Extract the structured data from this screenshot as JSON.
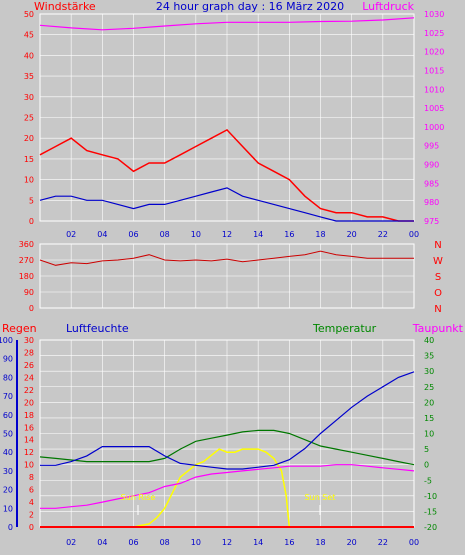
{
  "header": {
    "left_label": "Windstärke",
    "title": "24 hour graph day : 16 März 2020",
    "right_label": "Luftdruck"
  },
  "colors": {
    "background": "#c8c8c8",
    "plot_bg": "#c8c8c8",
    "grid": "#ffffff",
    "wind_gust": "#ff0000",
    "wind_avg": "#0000cc",
    "wind_green": "#008800",
    "pressure": "#ff00ff",
    "direction": "#cc0000",
    "humidity": "#0000cc",
    "temperature": "#007700",
    "dewpoint": "#ff00ff",
    "solar": "#ffff00",
    "rain": "#ff0000",
    "axis_red": "#ff0000",
    "axis_blue": "#0000cc",
    "axis_green": "#008800",
    "axis_magenta": "#ff00ff"
  },
  "chart_data": [
    {
      "type": "line",
      "title": "24 hour graph day : 16 März 2020",
      "ylabel": "Windstärke",
      "y2label": "Luftdruck",
      "x_ticks": [
        "02",
        "04",
        "06",
        "08",
        "10",
        "12",
        "14",
        "16",
        "18",
        "20",
        "22",
        "00"
      ],
      "x_range": [
        0,
        24
      ],
      "ylim": [
        0,
        50
      ],
      "y_ticks": [
        0,
        5,
        10,
        15,
        20,
        25,
        30,
        35,
        40,
        45,
        50
      ],
      "y2lim": [
        975,
        1030
      ],
      "y2_ticks": [
        975,
        980,
        985,
        990,
        995,
        1000,
        1005,
        1010,
        1015,
        1020,
        1025,
        1030
      ],
      "grid": true,
      "series": [
        {
          "name": "Windstärke Böen",
          "color": "#ff0000",
          "x": [
            0,
            1,
            2,
            3,
            4,
            5,
            6,
            7,
            8,
            9,
            10,
            11,
            12,
            13,
            14,
            15,
            16,
            17,
            18,
            19,
            20,
            21,
            22,
            23,
            24
          ],
          "values": [
            16,
            18,
            20,
            17,
            16,
            15,
            12,
            14,
            14,
            16,
            18,
            20,
            22,
            18,
            14,
            12,
            10,
            6,
            3,
            2,
            2,
            1,
            1,
            0,
            0
          ]
        },
        {
          "name": "Windstärke Mittel",
          "color": "#0000cc",
          "x": [
            0,
            1,
            2,
            3,
            4,
            5,
            6,
            7,
            8,
            9,
            10,
            11,
            12,
            13,
            14,
            15,
            16,
            17,
            18,
            19,
            20,
            21,
            22,
            23,
            24
          ],
          "values": [
            5,
            6,
            6,
            5,
            5,
            4,
            3,
            4,
            4,
            5,
            6,
            7,
            8,
            6,
            5,
            4,
            3,
            2,
            1,
            0,
            0,
            0,
            0,
            0,
            0
          ]
        },
        {
          "name": "Luftdruck",
          "color": "#ff00ff",
          "axis": "y2",
          "x": [
            0,
            2,
            4,
            6,
            8,
            10,
            12,
            14,
            16,
            18,
            20,
            22,
            24
          ],
          "values": [
            1027.0,
            1026.3,
            1025.8,
            1026.2,
            1026.8,
            1027.4,
            1027.8,
            1027.8,
            1027.8,
            1028.0,
            1028.1,
            1028.4,
            1029.0
          ]
        }
      ]
    },
    {
      "type": "line",
      "ylabel_right": [
        "N",
        "W",
        "S",
        "O",
        "N"
      ],
      "x_range": [
        0,
        24
      ],
      "ylim": [
        0,
        360
      ],
      "y_ticks": [
        0,
        90,
        180,
        270,
        360
      ],
      "grid": true,
      "series": [
        {
          "name": "Windrichtung",
          "color": "#cc0000",
          "x": [
            0,
            1,
            2,
            3,
            4,
            5,
            6,
            7,
            8,
            9,
            10,
            11,
            12,
            13,
            14,
            15,
            16,
            17,
            18,
            19,
            20,
            21,
            22,
            23,
            24
          ],
          "values": [
            270,
            240,
            255,
            250,
            265,
            270,
            280,
            300,
            270,
            265,
            270,
            265,
            275,
            260,
            270,
            280,
            290,
            300,
            320,
            300,
            290,
            280,
            280,
            280,
            280
          ]
        }
      ]
    },
    {
      "type": "line",
      "left_labels": [
        "Regen",
        "Luftfeuchte"
      ],
      "right_labels": [
        "Temperatur",
        "Taupunkt"
      ],
      "annotations": [
        "Sun Rise",
        "Sun Set"
      ],
      "x_ticks": [
        "02",
        "04",
        "06",
        "08",
        "10",
        "12",
        "14",
        "16",
        "18",
        "20",
        "22",
        "00"
      ],
      "x_range": [
        0,
        24
      ],
      "y_humidity_lim": [
        0,
        100
      ],
      "y_humidity_ticks": [
        0,
        10,
        20,
        30,
        40,
        50,
        60,
        70,
        80,
        90,
        100
      ],
      "y_rain_lim": [
        0,
        30
      ],
      "y_rain_ticks": [
        0,
        2,
        4,
        6,
        8,
        10,
        12,
        14,
        16,
        18,
        20,
        22,
        24,
        26,
        28,
        30
      ],
      "y_temp_lim": [
        -20,
        40
      ],
      "y_temp_ticks": [
        -20,
        -15,
        -10,
        -5,
        0,
        5,
        10,
        15,
        20,
        25,
        30,
        35,
        40
      ],
      "grid": true,
      "series": [
        {
          "name": "Luftfeuchte",
          "color": "#0000cc",
          "axis": "humidity",
          "x": [
            0,
            1,
            2,
            3,
            4,
            5,
            6,
            7,
            8,
            9,
            10,
            11,
            12,
            13,
            14,
            15,
            16,
            17,
            18,
            19,
            20,
            21,
            22,
            23,
            24
          ],
          "values": [
            33,
            33,
            35,
            38,
            43,
            43,
            43,
            43,
            38,
            34,
            33,
            32,
            31,
            31,
            32,
            33,
            36,
            42,
            50,
            57,
            64,
            70,
            75,
            80,
            83
          ]
        },
        {
          "name": "Temperatur",
          "color": "#007700",
          "axis": "temp",
          "x": [
            0,
            1,
            2,
            3,
            4,
            5,
            6,
            7,
            8,
            9,
            10,
            11,
            12,
            13,
            14,
            15,
            16,
            17,
            18,
            19,
            20,
            21,
            22,
            23,
            24
          ],
          "values": [
            2.5,
            2,
            1.5,
            1,
            1,
            1,
            1,
            1,
            2,
            5,
            7.5,
            8.5,
            9.5,
            10.5,
            11,
            11,
            10,
            8,
            6,
            5,
            4,
            3,
            2,
            1,
            0
          ]
        },
        {
          "name": "Taupunkt",
          "color": "#ff00ff",
          "axis": "temp",
          "x": [
            0,
            1,
            2,
            3,
            4,
            5,
            6,
            7,
            8,
            9,
            10,
            11,
            12,
            13,
            14,
            15,
            16,
            17,
            18,
            19,
            20,
            21,
            22,
            23,
            24
          ],
          "values": [
            -14,
            -14,
            -13.5,
            -13,
            -12,
            -11,
            -10,
            -9,
            -7,
            -6,
            -4,
            -3,
            -2.5,
            -2,
            -1.5,
            -1,
            -0.5,
            -0.5,
            -0.5,
            0,
            0,
            -0.5,
            -1,
            -1.5,
            -2
          ]
        },
        {
          "name": "Solar",
          "color": "#ffff00",
          "axis": "temp",
          "x": [
            6,
            6.5,
            7,
            7.5,
            8,
            8.5,
            9,
            9.5,
            10,
            10.5,
            11,
            11.5,
            12,
            12.5,
            13,
            13.5,
            14,
            14.5,
            15,
            15.5,
            15.8,
            16
          ],
          "values": [
            -20,
            -19.5,
            -19,
            -17,
            -14,
            -9,
            -4,
            -2,
            0,
            1,
            3,
            5,
            4,
            4,
            5,
            5,
            5,
            4,
            2,
            -2,
            -10,
            -20
          ]
        },
        {
          "name": "Regen",
          "color": "#ff0000",
          "axis": "rain",
          "x": [
            0,
            24
          ],
          "values": [
            0,
            0
          ]
        }
      ]
    }
  ]
}
